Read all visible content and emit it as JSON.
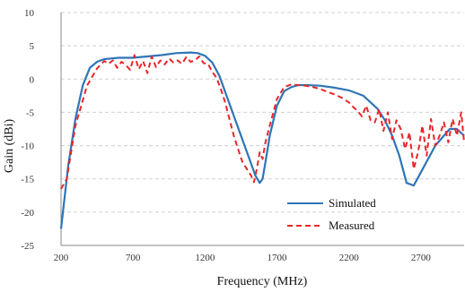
{
  "chart_data": {
    "type": "line",
    "title": "",
    "xlabel": "Frequency (MHz)",
    "ylabel": "Gain (dBi)",
    "xlim": [
      200,
      3000
    ],
    "ylim": [
      -25,
      10
    ],
    "xticks": [
      200,
      700,
      1200,
      1700,
      2200,
      2700
    ],
    "xtick_labels": [
      "200",
      "700",
      "1200",
      "1700",
      "2200",
      "2700"
    ],
    "yticks": [
      10,
      5,
      0,
      -5,
      -10,
      -15,
      -20,
      -25
    ],
    "ytick_labels": [
      "10",
      "5",
      "0",
      "-5",
      "-10",
      "-15",
      "-20",
      "-25"
    ],
    "grid": "horizontal dashed",
    "legend_position": "bottom-right",
    "series": [
      {
        "name": "Simulated",
        "color": "#2e75b6",
        "style": "solid",
        "x": [
          200,
          250,
          300,
          350,
          400,
          450,
          500,
          550,
          600,
          700,
          800,
          900,
          1000,
          1100,
          1150,
          1200,
          1250,
          1300,
          1350,
          1400,
          1450,
          1500,
          1550,
          1580,
          1600,
          1620,
          1650,
          1700,
          1750,
          1800,
          1850,
          1900,
          2000,
          2100,
          2200,
          2300,
          2400,
          2450,
          2500,
          2550,
          2600,
          2650,
          2700,
          2800,
          2900,
          2950,
          3000
        ],
        "y": [
          -22.5,
          -13,
          -6,
          -1,
          1.7,
          2.6,
          3.0,
          3.1,
          3.2,
          3.2,
          3.4,
          3.6,
          3.9,
          4.0,
          3.9,
          3.5,
          2.5,
          0.5,
          -2.5,
          -5.5,
          -8.5,
          -11.5,
          -14.5,
          -15.6,
          -15.0,
          -12.5,
          -8.5,
          -4.0,
          -1.8,
          -1.2,
          -0.9,
          -0.9,
          -1.0,
          -1.3,
          -1.7,
          -2.5,
          -4.5,
          -6.2,
          -8.5,
          -11.5,
          -15.6,
          -16.0,
          -14.0,
          -10.0,
          -7.5,
          -7.5,
          -8.5
        ]
      },
      {
        "name": "Measured",
        "color": "#e8262a",
        "style": "dashed",
        "x": [
          200,
          240,
          270,
          300,
          340,
          380,
          420,
          450,
          500,
          530,
          560,
          590,
          620,
          650,
          680,
          710,
          740,
          770,
          800,
          830,
          860,
          890,
          920,
          950,
          980,
          1010,
          1040,
          1070,
          1100,
          1130,
          1160,
          1190,
          1220,
          1250,
          1280,
          1310,
          1340,
          1370,
          1400,
          1430,
          1460,
          1490,
          1520,
          1540,
          1560,
          1580,
          1600,
          1620,
          1650,
          1700,
          1750,
          1800,
          1850,
          1900,
          1950,
          2000,
          2050,
          2100,
          2150,
          2200,
          2230,
          2260,
          2290,
          2320,
          2350,
          2380,
          2410,
          2440,
          2470,
          2500,
          2530,
          2560,
          2590,
          2620,
          2650,
          2680,
          2710,
          2740,
          2770,
          2800,
          2830,
          2860,
          2890,
          2920,
          2950,
          2980,
          3000
        ],
        "y": [
          -16.5,
          -15,
          -11,
          -7,
          -4,
          -1,
          0.5,
          1.6,
          2.7,
          2.3,
          2.8,
          1.7,
          2.6,
          2.1,
          1.4,
          3.6,
          1.5,
          2.7,
          0.9,
          3.4,
          1.8,
          2.8,
          2.2,
          3.1,
          2.5,
          2.8,
          2.3,
          3.3,
          2.6,
          2.8,
          3.4,
          2.4,
          2.3,
          1.1,
          0.2,
          -1.5,
          -3.5,
          -6.0,
          -8.5,
          -10.5,
          -12.5,
          -13.5,
          -14.5,
          -15.5,
          -13.5,
          -11.0,
          -12.0,
          -9.5,
          -7.0,
          -3.0,
          -1.2,
          -0.8,
          -0.9,
          -1.0,
          -1.2,
          -1.5,
          -1.9,
          -2.3,
          -2.8,
          -3.5,
          -4.2,
          -4.8,
          -5.6,
          -4.0,
          -6.2,
          -6.5,
          -4.5,
          -7.8,
          -5.0,
          -9.0,
          -6.2,
          -7.5,
          -10.5,
          -8.0,
          -13.5,
          -11.0,
          -7.0,
          -11.5,
          -6.0,
          -10.0,
          -8.5,
          -6.5,
          -9.5,
          -6.0,
          -8.5,
          -5.0,
          -9.5
        ]
      }
    ],
    "legend": [
      {
        "label": "Simulated",
        "style": "solid",
        "color": "#2e75b6"
      },
      {
        "label": "Measured",
        "style": "dashed",
        "color": "#e8262a"
      }
    ]
  }
}
